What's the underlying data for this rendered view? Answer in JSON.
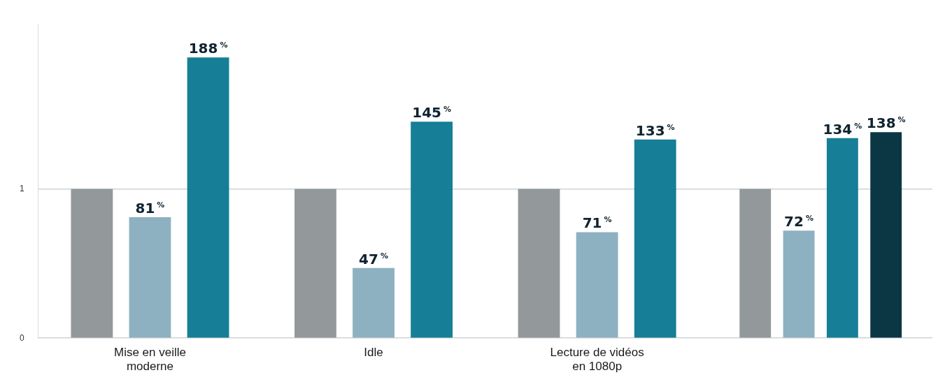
{
  "chart_data": {
    "type": "bar",
    "categories": [
      "Mise en veille moderne",
      "Idle",
      "Lecture de vidéos en 1080p",
      null
    ],
    "series": [
      {
        "color": "#93989b",
        "values": [
          1,
          1,
          1,
          1
        ]
      },
      {
        "color": "#8db1c0",
        "values": [
          0.81,
          0.47,
          0.71,
          0.72
        ],
        "value_labels": [
          "81$^{%}$",
          "47$^{%}$",
          "71$^{%}$",
          "72$^{%}$"
        ]
      },
      {
        "color": "#167e96",
        "values": [
          1.88,
          1.45,
          1.33,
          1.34
        ],
        "value_labels": [
          "188$^{%}$",
          "145$^{%}$",
          "133$^{%}$",
          "134$^{%}$"
        ]
      },
      {
        "color": "#0b3745",
        "values": [
          null,
          null,
          null,
          1.38
        ],
        "value_labels": [
          null,
          null,
          null,
          "138$^{%}$"
        ]
      }
    ],
    "ylim": [
      0,
      2.1
    ],
    "yticks": [
      0,
      1
    ],
    "grid": "y",
    "legend": false
  }
}
